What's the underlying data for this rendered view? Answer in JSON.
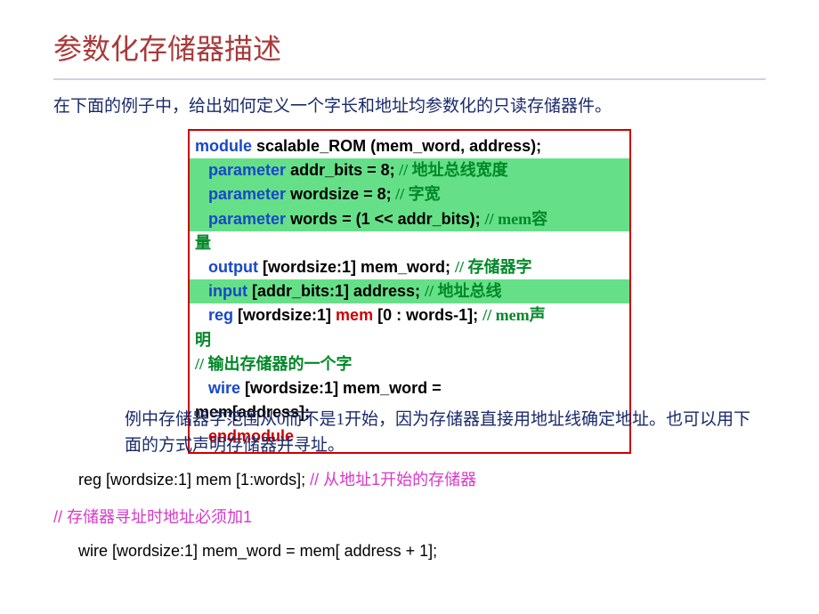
{
  "title": "参数化存储器描述",
  "intro": "在下面的例子中，给出如何定义一个字长和地址均参数化的只读存储器件。",
  "code": {
    "line1": {
      "kw": "module",
      "rest": " scalable_ROM (mem_word, address);"
    },
    "line2": {
      "kw": "parameter",
      "rest": " addr_bits = 8;",
      "cm": "  // 地址总线宽度"
    },
    "line3": {
      "kw": "parameter",
      "rest": " wordsize = 8;",
      "cm": "   // 字宽"
    },
    "line4": {
      "kw": "parameter",
      "rest": " words = (1 << addr_bits); ",
      "cm": "// mem容"
    },
    "line4b": "量",
    "line5": {
      "kw": "output",
      "rest": " [wordsize:1] mem_word; ",
      "cm": "// 存储器字"
    },
    "line6": {
      "kw": "input",
      "rest": " [addr_bits:1] address; ",
      "cm": "// 地址总线"
    },
    "line7": {
      "kw": "reg",
      "rest1": " [wordsize:1] ",
      "mem": "mem",
      "rest2": " [0 : words-1]; ",
      "cm": "// mem声"
    },
    "line7b": "明",
    "line8": "// 输出存储器的一个字",
    "line9a": {
      "kw": "wire",
      "rest": " [wordsize:1] mem_word ="
    },
    "line9b": "mem[address];",
    "line10": "endmodule"
  },
  "para_below": "  例中存储器字范围从0而不是1开始，因为存储器直接用地址线确定地址。也可以用下面的方式声明存储器并寻址。",
  "code_below1": "reg [wordsize:1] mem [1:words]; ",
  "code_below1_cm": "// 从地址1开始的存储器",
  "comment2": "// 存储器寻址时地址必须加1",
  "code_last": "wire [wordsize:1] mem_word = mem[ address + 1];"
}
